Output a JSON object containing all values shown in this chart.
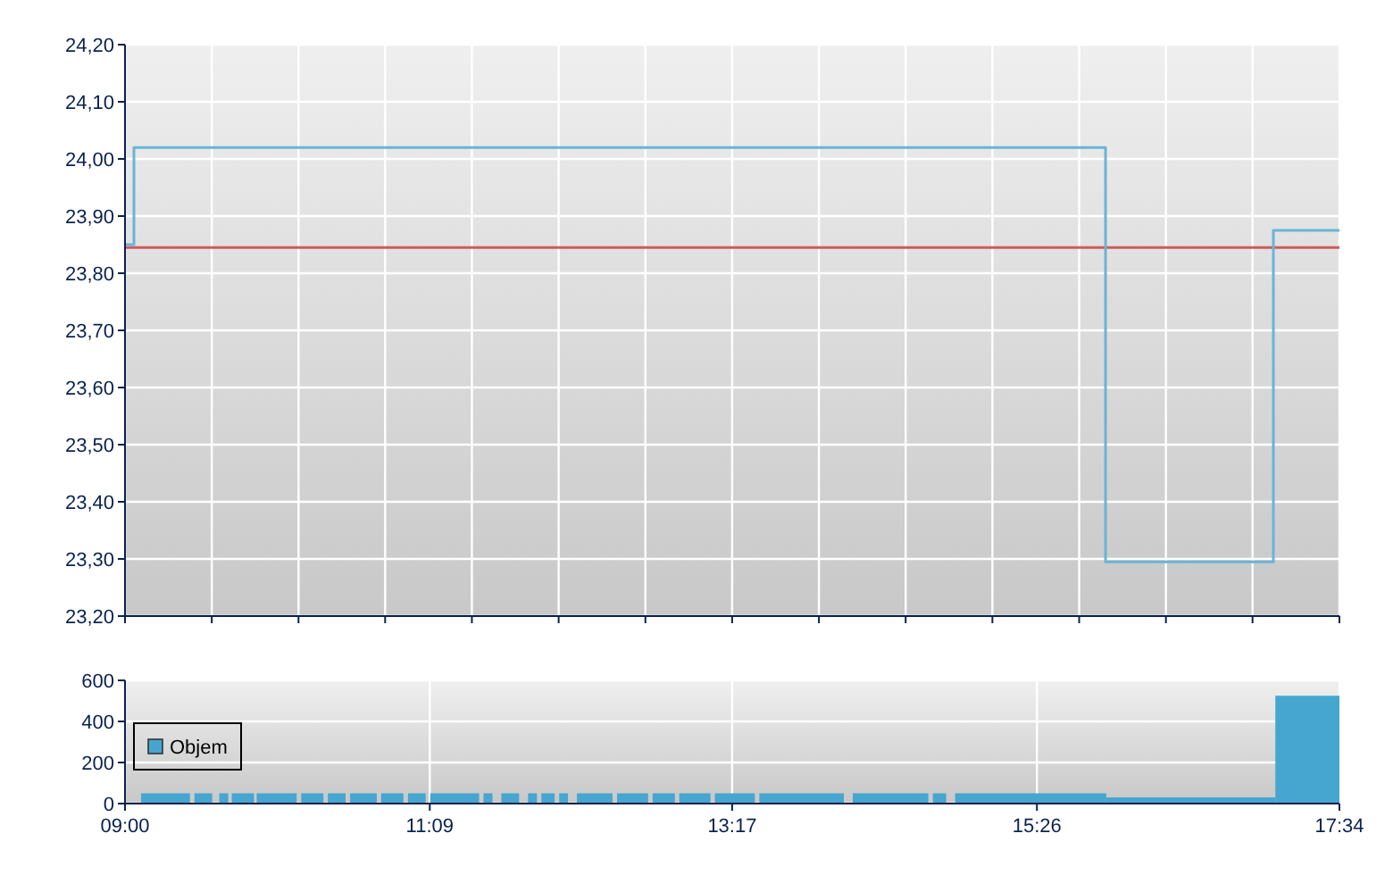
{
  "chart_data": [
    {
      "type": "step",
      "xlim": [
        9,
        17.567
      ],
      "ylim": [
        23.2,
        24.2
      ],
      "xticks": [
        {
          "value": 9,
          "label": null
        },
        {
          "value": 9.612,
          "label": null
        },
        {
          "value": 10.224,
          "label": null
        },
        {
          "value": 10.835,
          "label": null
        },
        {
          "value": 11.447,
          "label": null
        },
        {
          "value": 12.059,
          "label": null
        },
        {
          "value": 12.671,
          "label": null
        },
        {
          "value": 13.283,
          "label": null
        },
        {
          "value": 13.895,
          "label": null
        },
        {
          "value": 14.507,
          "label": null
        },
        {
          "value": 15.119,
          "label": null
        },
        {
          "value": 15.731,
          "label": null
        },
        {
          "value": 16.343,
          "label": null
        },
        {
          "value": 16.954,
          "label": null
        },
        {
          "value": 17.567,
          "label": null
        }
      ],
      "yticks": [
        {
          "value": 23.2,
          "label": "23,20"
        },
        {
          "value": 23.3,
          "label": "23,30"
        },
        {
          "value": 23.4,
          "label": "23,40"
        },
        {
          "value": 23.5,
          "label": "23,50"
        },
        {
          "value": 23.6,
          "label": "23,60"
        },
        {
          "value": 23.7,
          "label": "23,70"
        },
        {
          "value": 23.8,
          "label": "23,80"
        },
        {
          "value": 23.9,
          "label": "23,90"
        },
        {
          "value": 24.0,
          "label": "24,00"
        },
        {
          "value": 24.1,
          "label": "24,10"
        },
        {
          "value": 24.2,
          "label": "24,20"
        }
      ],
      "tick_labels": "y",
      "grid": true,
      "series": [
        {
          "color": "#6ab4d6",
          "x": [
            9,
            9.063,
            15.917,
            17.101,
            17.567
          ],
          "values": [
            23.85,
            24.02,
            23.295,
            23.875,
            23.875
          ]
        }
      ],
      "ref_lines": [
        {
          "axis": "y",
          "value": 23.845,
          "color": "#d05a5a"
        }
      ]
    },
    {
      "type": "histogram",
      "xlim": [
        9,
        17.567
      ],
      "ylim": [
        0,
        600
      ],
      "xticks": [
        {
          "value": 9,
          "label": "09:00"
        },
        {
          "value": 11.15,
          "label": "11:09"
        },
        {
          "value": 13.283,
          "label": "13:17"
        },
        {
          "value": 15.433,
          "label": "15:26"
        },
        {
          "value": 17.567,
          "label": "17:34"
        }
      ],
      "yticks": [
        0,
        200,
        400,
        600
      ],
      "grid": true,
      "legend": "left",
      "bins": [
        9.113,
        9.458,
        9.49,
        9.615,
        9.665,
        9.728,
        9.753,
        9.91,
        9.929,
        10.211,
        10.243,
        10.4,
        10.431,
        10.556,
        10.588,
        10.776,
        10.807,
        10.964,
        10.996,
        11.121,
        11.153,
        11.498,
        11.529,
        11.592,
        11.655,
        11.78,
        11.843,
        11.906,
        11.937,
        12.031,
        12.063,
        12.125,
        12.188,
        12.439,
        12.471,
        12.69,
        12.722,
        12.879,
        12.91,
        13.13,
        13.161,
        13.443,
        13.475,
        14.071,
        14.134,
        14.667,
        14.699,
        14.793,
        14.856,
        15.922,
        17.115,
        17.567
      ],
      "series": [
        {
          "name": "Objem",
          "color": "#46a6cf",
          "values": [
            50,
            0,
            50,
            0,
            50,
            0,
            50,
            0,
            50,
            0,
            50,
            0,
            50,
            0,
            50,
            0,
            50,
            0,
            50,
            0,
            50,
            0,
            50,
            0,
            50,
            0,
            50,
            0,
            50,
            0,
            50,
            0,
            50,
            0,
            50,
            0,
            50,
            0,
            50,
            0,
            50,
            0,
            50,
            0,
            50,
            0,
            50,
            0,
            50,
            30,
            525
          ]
        }
      ]
    }
  ]
}
